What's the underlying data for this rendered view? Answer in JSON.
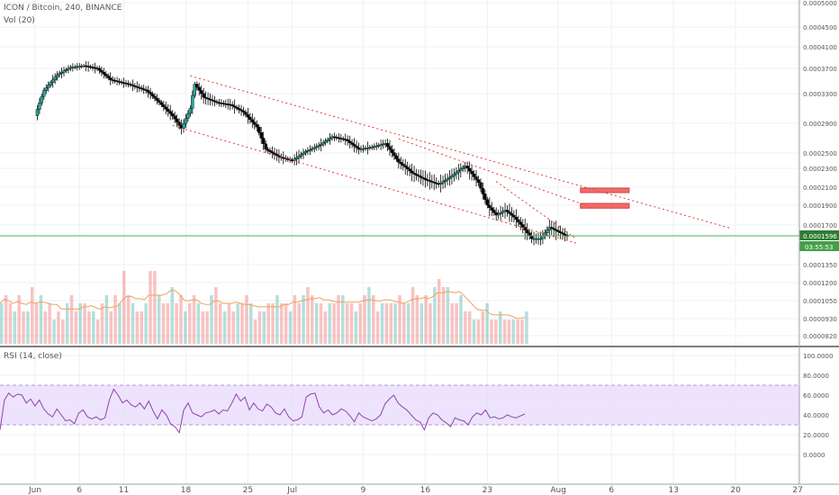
{
  "header": {
    "symbol_line": "ICON / Bitcoin, 240, BINANCE",
    "volume_study": "Vol (20)",
    "rsi_study": "RSI (14, close)"
  },
  "colors": {
    "up": "#26a69a",
    "down": "#ef5350",
    "candle_body": "#000000",
    "channel_line": "#e53935",
    "price_line": "#4caf50",
    "rsi_line": "#8e44ad",
    "rsi_band": "#e9dcfb",
    "vol_ma": "#f2a05a",
    "target_box": "#ef5350"
  },
  "chart_data": [
    {
      "type": "candlestick",
      "title": "ICON / Bitcoin, 240, BINANCE",
      "x_tick_labels": [
        "Jun",
        "6",
        "11",
        "18",
        "25",
        "Jul",
        "9",
        "16",
        "23",
        "Aug",
        "6",
        "13",
        "20",
        "27"
      ],
      "y_tick_labels": [
        "0.0005000",
        "0.0004500",
        "0.0004100",
        "0.0003700",
        "0.0003300",
        "0.0002900",
        "0.0002500",
        "0.0002300",
        "0.0002100",
        "0.0001900",
        "0.0001700",
        "0.0001350",
        "0.0001200",
        "0.0001050",
        "0.0000930",
        "0.0000820"
      ],
      "last_price_label": "0.0001596",
      "countdown_label": "03:55:53",
      "price_path": [
        [
          0,
          0.0003
        ],
        [
          2,
          0.000335
        ],
        [
          5,
          0.00036
        ],
        [
          8,
          0.000372
        ],
        [
          11,
          0.000375
        ],
        [
          14,
          0.00037
        ],
        [
          17,
          0.000352
        ],
        [
          21,
          0.000345
        ],
        [
          25,
          0.000335
        ],
        [
          28,
          0.000318
        ],
        [
          31,
          0.0003
        ],
        [
          33,
          0.000283
        ],
        [
          35,
          0.00031
        ],
        [
          36,
          0.000345
        ],
        [
          38,
          0.000325
        ],
        [
          41,
          0.000318
        ],
        [
          44,
          0.000315
        ],
        [
          47,
          0.000305
        ],
        [
          50,
          0.000285
        ],
        [
          52,
          0.000255
        ],
        [
          55,
          0.000245
        ],
        [
          58,
          0.00024
        ],
        [
          61,
          0.000252
        ],
        [
          64,
          0.00026
        ],
        [
          67,
          0.000272
        ],
        [
          70,
          0.000268
        ],
        [
          73,
          0.000255
        ],
        [
          76,
          0.000258
        ],
        [
          79,
          0.000263
        ],
        [
          82,
          0.000238
        ],
        [
          85,
          0.000225
        ],
        [
          88,
          0.000218
        ],
        [
          91,
          0.000213
        ],
        [
          94,
          0.000222
        ],
        [
          97,
          0.000233
        ],
        [
          100,
          0.000215
        ],
        [
          102,
          0.00019
        ],
        [
          104,
          0.00018
        ],
        [
          106,
          0.000185
        ],
        [
          108,
          0.000178
        ],
        [
          110,
          0.000168
        ],
        [
          112,
          0.000158
        ],
        [
          114,
          0.000158
        ],
        [
          116,
          0.000168
        ],
        [
          118,
          0.000164
        ],
        [
          120,
          0.00016
        ]
      ],
      "candles_per_day": 6,
      "channel": {
        "upper": [
          [
            35,
            0.000358
          ],
          [
            157,
            0.000167
          ]
        ],
        "lower": [
          [
            31,
            0.000287
          ],
          [
            122,
            0.000154
          ]
        ],
        "inner": [
          [
            104,
            0.000216
          ],
          [
            122,
            0.000158
          ]
        ],
        "mid": [
          [
            82,
            0.000269
          ],
          [
            126,
            0.000187
          ]
        ]
      },
      "target_zones": [
        {
          "x_from": 123,
          "x_to": 134,
          "price_low": 0.000204,
          "price_high": 0.000209
        },
        {
          "x_from": 123,
          "x_to": 134,
          "price_low": 0.000187,
          "price_high": 0.000192
        }
      ]
    },
    {
      "type": "bar",
      "title": "Vol (20)",
      "values": [
        5,
        6,
        5,
        4,
        6,
        4,
        4,
        7,
        5,
        6,
        4,
        5,
        3,
        4,
        3,
        5,
        6,
        4,
        5,
        5,
        4,
        4,
        3,
        5,
        6,
        4,
        6,
        5,
        9,
        6,
        5,
        4,
        4,
        5,
        9,
        9,
        6,
        5,
        5,
        7,
        5,
        6,
        4,
        5,
        6,
        5,
        4,
        4,
        6,
        7,
        5,
        4,
        5,
        4,
        5,
        5,
        6,
        5,
        3,
        4,
        4,
        5,
        5,
        6,
        5,
        5,
        4,
        6,
        5,
        6,
        7,
        6,
        5,
        5,
        4,
        5,
        5,
        6,
        6,
        5,
        5,
        4,
        5,
        6,
        7,
        6,
        4,
        5,
        5,
        5,
        5,
        6,
        5,
        5,
        7,
        6,
        5,
        6,
        5,
        7,
        8,
        7,
        7,
        5,
        5,
        6,
        4,
        4,
        3,
        3,
        4,
        5,
        3,
        3,
        4,
        3,
        3,
        3,
        3,
        3,
        4
      ]
    },
    {
      "type": "line",
      "title": "RSI (14, close)",
      "y_tick_labels": [
        "100.0000",
        "80.0000",
        "60.0000",
        "40.0000",
        "20.0000",
        "0.0000"
      ],
      "band": [
        30,
        70
      ],
      "values": [
        25,
        55,
        62,
        58,
        61,
        60,
        52,
        56,
        49,
        55,
        46,
        41,
        38,
        46,
        40,
        34,
        35,
        31,
        42,
        45,
        38,
        36,
        38,
        35,
        37,
        55,
        66,
        60,
        52,
        55,
        50,
        48,
        52,
        46,
        54,
        44,
        36,
        45,
        40,
        31,
        28,
        22,
        45,
        52,
        42,
        40,
        38,
        42,
        43,
        45,
        41,
        45,
        44,
        52,
        61,
        54,
        58,
        45,
        52,
        46,
        44,
        51,
        48,
        42,
        40,
        46,
        38,
        34,
        35,
        38,
        58,
        61,
        62,
        48,
        42,
        45,
        40,
        42,
        46,
        44,
        39,
        33,
        42,
        38,
        36,
        34,
        36,
        40,
        51,
        56,
        60,
        52,
        48,
        45,
        40,
        35,
        33,
        25,
        37,
        42,
        40,
        35,
        32,
        28,
        37,
        35,
        34,
        30,
        38,
        42,
        40,
        45,
        37,
        38,
        36,
        37,
        40,
        38,
        37,
        39,
        41
      ]
    }
  ]
}
